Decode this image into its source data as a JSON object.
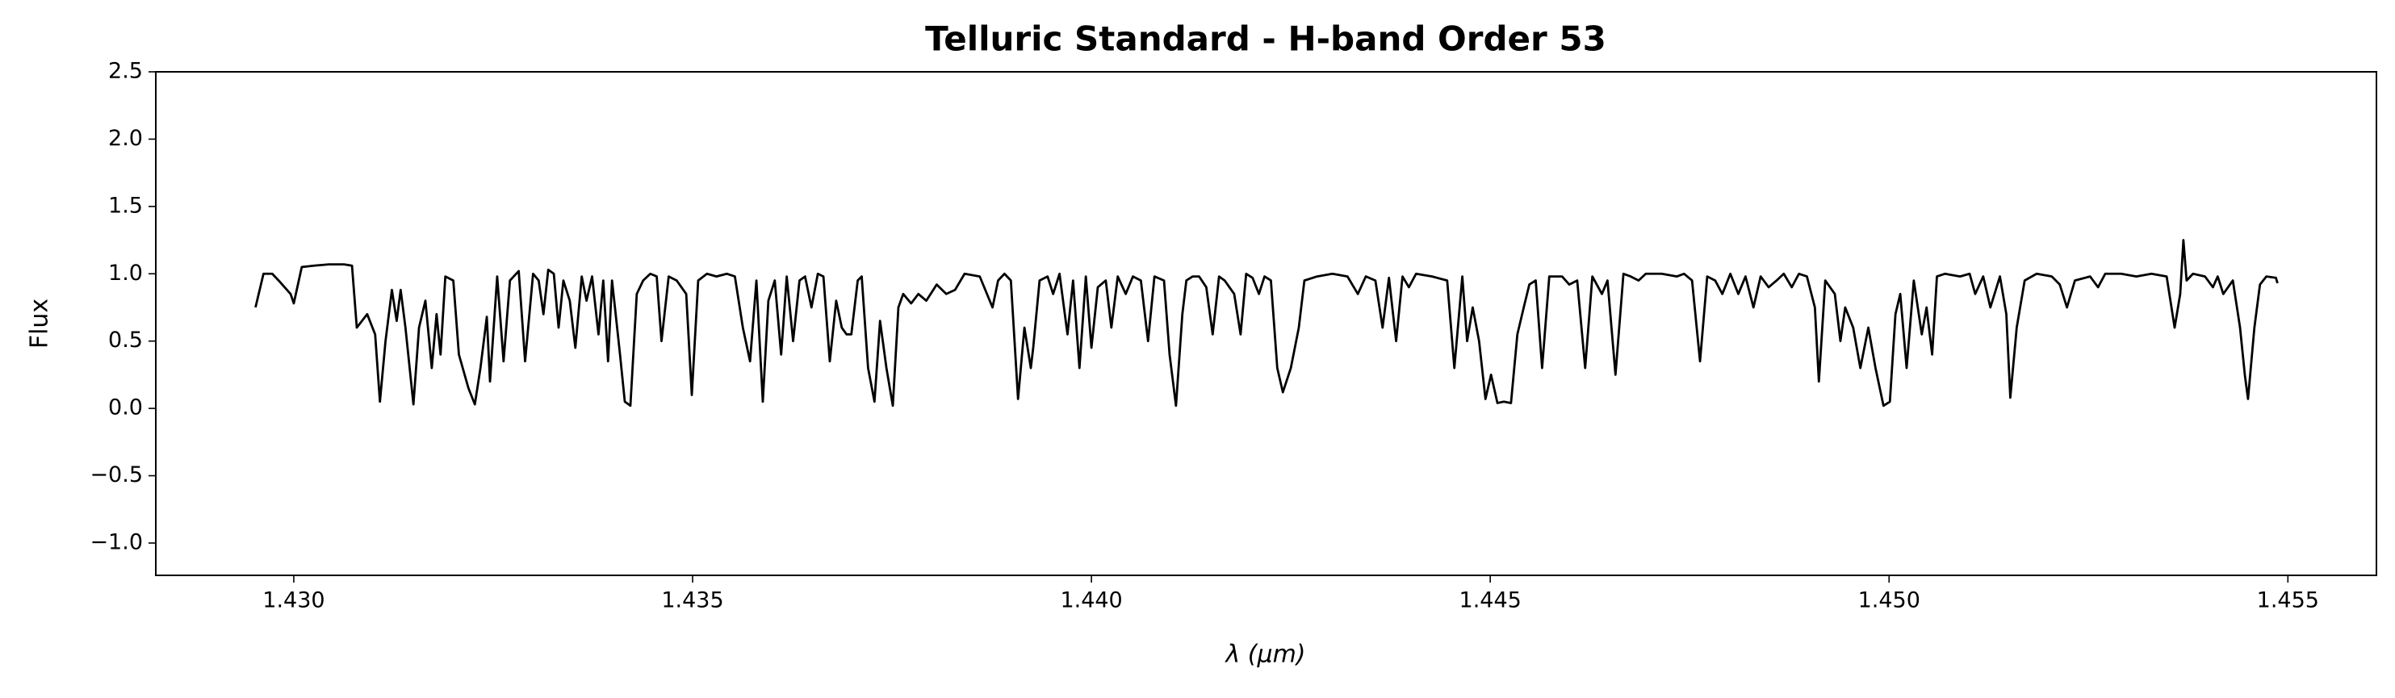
{
  "chart_data": {
    "type": "line",
    "title": "Telluric Standard - H-band Order 53",
    "xlabel": "λ (μm)",
    "ylabel": "Flux",
    "color": "#000000",
    "x": [
      1.42952,
      1.42962,
      1.42973,
      1.42981,
      1.42996,
      1.43,
      1.4301,
      1.43025,
      1.43044,
      1.43063,
      1.43073,
      1.43079,
      1.43092,
      1.43102,
      1.43108,
      1.43115,
      1.43123,
      1.43129,
      1.43134,
      1.4314,
      1.4315,
      1.43157,
      1.43165,
      1.43173,
      1.43179,
      1.43184,
      1.4319,
      1.432,
      1.43207,
      1.43219,
      1.43227,
      1.43234,
      1.43242,
      1.43246,
      1.43255,
      1.43263,
      1.43271,
      1.43282,
      1.4329,
      1.433,
      1.43307,
      1.43313,
      1.43319,
      1.43326,
      1.43332,
      1.43338,
      1.43346,
      1.43353,
      1.43361,
      1.43367,
      1.43374,
      1.43382,
      1.43388,
      1.43394,
      1.43399,
      1.43409,
      1.43415,
      1.43422,
      1.4343,
      1.43438,
      1.43447,
      1.43455,
      1.43461,
      1.4347,
      1.4348,
      1.43492,
      1.43499,
      1.43507,
      1.43518,
      1.4353,
      1.43543,
      1.43553,
      1.43563,
      1.43572,
      1.4358,
      1.43588,
      1.43595,
      1.43603,
      1.43611,
      1.43618,
      1.43626,
      1.43634,
      1.43641,
      1.43649,
      1.43657,
      1.43664,
      1.43672,
      1.4368,
      1.43687,
      1.43693,
      1.43699,
      1.43707,
      1.43712,
      1.4372,
      1.43728,
      1.43735,
      1.43743,
      1.43751,
      1.43758,
      1.43764,
      1.43774,
      1.43783,
      1.43793,
      1.43806,
      1.43818,
      1.43829,
      1.43841,
      1.4386,
      1.43876,
      1.43883,
      1.43891,
      1.43899,
      1.43908,
      1.43916,
      1.43924,
      1.43927,
      1.43935,
      1.43945,
      1.43952,
      1.4396,
      1.4397,
      1.43977,
      1.43985,
      1.43993,
      1.44,
      1.44008,
      1.44018,
      1.44025,
      1.44033,
      1.44043,
      1.44052,
      1.44062,
      1.44071,
      1.44079,
      1.44091,
      1.44098,
      1.44106,
      1.44114,
      1.44119,
      1.44127,
      1.44135,
      1.44144,
      1.44152,
      1.4416,
      1.44167,
      1.44179,
      1.44187,
      1.44194,
      1.44202,
      1.4421,
      1.44217,
      1.44225,
      1.44233,
      1.4424,
      1.4425,
      1.4426,
      1.44267,
      1.44283,
      1.44302,
      1.44321,
      1.44334,
      1.44344,
      1.44356,
      1.44365,
      1.44373,
      1.44382,
      1.4439,
      1.44398,
      1.44407,
      1.44427,
      1.44446,
      1.44455,
      1.44465,
      1.44471,
      1.44478,
      1.44486,
      1.44494,
      1.44501,
      1.44509,
      1.44517,
      1.44526,
      1.44534,
      1.44542,
      1.44549,
      1.44557,
      1.44565,
      1.44574,
      1.4459,
      1.44599,
      1.44609,
      1.44619,
      1.44628,
      1.4464,
      1.44647,
      1.44657,
      1.44667,
      1.44676,
      1.44686,
      1.44695,
      1.44715,
      1.44734,
      1.44743,
      1.44753,
      1.44763,
      1.44772,
      1.44782,
      1.44791,
      1.44801,
      1.44811,
      1.4482,
      1.4483,
      1.44839,
      1.44849,
      1.44859,
      1.44868,
      1.44878,
      1.44887,
      1.44897,
      1.44907,
      1.44912,
      1.4492,
      1.44932,
      1.44939,
      1.44945,
      1.44955,
      1.44964,
      1.44974,
      1.44983,
      1.44993,
      1.45001,
      1.45008,
      1.45014,
      1.45022,
      1.45031,
      1.45041,
      1.45047,
      1.45054,
      1.4506,
      1.4507,
      1.45089,
      1.45101,
      1.45108,
      1.45118,
      1.45127,
      1.45139,
      1.45147,
      1.45152,
      1.4516,
      1.4517,
      1.45185,
      1.45204,
      1.45214,
      1.45223,
      1.45233,
      1.45252,
      1.45262,
      1.45271,
      1.45291,
      1.4531,
      1.45329,
      1.45348,
      1.45358,
      1.45365,
      1.45369,
      1.45373,
      1.45381,
      1.45396,
      1.45406,
      1.45412,
      1.45419,
      1.45431,
      1.4544,
      1.45446,
      1.4545,
      1.45458,
      1.45465,
      1.45473,
      1.45485,
      1.45487
    ],
    "values": [
      0.75,
      1.0,
      1.0,
      0.95,
      0.85,
      0.78,
      1.05,
      1.06,
      1.07,
      1.07,
      1.06,
      0.6,
      0.7,
      0.55,
      0.05,
      0.5,
      0.88,
      0.65,
      0.88,
      0.6,
      0.03,
      0.6,
      0.8,
      0.3,
      0.7,
      0.4,
      0.98,
      0.95,
      0.4,
      0.15,
      0.03,
      0.3,
      0.68,
      0.2,
      0.98,
      0.35,
      0.95,
      1.02,
      0.35,
      1.0,
      0.95,
      0.7,
      1.03,
      1.0,
      0.6,
      0.95,
      0.8,
      0.45,
      0.98,
      0.8,
      0.98,
      0.55,
      0.95,
      0.35,
      0.95,
      0.4,
      0.05,
      0.02,
      0.85,
      0.95,
      1.0,
      0.98,
      0.5,
      0.98,
      0.95,
      0.85,
      0.1,
      0.95,
      1.0,
      0.98,
      1.0,
      0.98,
      0.6,
      0.35,
      0.95,
      0.05,
      0.8,
      0.95,
      0.4,
      0.98,
      0.5,
      0.95,
      0.98,
      0.75,
      1.0,
      0.98,
      0.35,
      0.8,
      0.6,
      0.55,
      0.55,
      0.95,
      0.98,
      0.3,
      0.05,
      0.65,
      0.3,
      0.02,
      0.75,
      0.85,
      0.78,
      0.85,
      0.8,
      0.92,
      0.85,
      0.88,
      1.0,
      0.98,
      0.75,
      0.95,
      1.0,
      0.95,
      0.07,
      0.6,
      0.3,
      0.45,
      0.95,
      0.98,
      0.85,
      1.0,
      0.55,
      0.95,
      0.3,
      0.98,
      0.45,
      0.9,
      0.95,
      0.6,
      0.98,
      0.85,
      0.98,
      0.95,
      0.5,
      0.98,
      0.95,
      0.4,
      0.02,
      0.7,
      0.95,
      0.98,
      0.98,
      0.9,
      0.55,
      0.98,
      0.95,
      0.85,
      0.55,
      1.0,
      0.97,
      0.85,
      0.98,
      0.95,
      0.3,
      0.12,
      0.3,
      0.6,
      0.95,
      0.98,
      1.0,
      0.98,
      0.85,
      0.98,
      0.95,
      0.6,
      0.97,
      0.5,
      0.98,
      0.9,
      1.0,
      0.98,
      0.95,
      0.3,
      0.98,
      0.5,
      0.75,
      0.5,
      0.07,
      0.25,
      0.04,
      0.05,
      0.04,
      0.55,
      0.75,
      0.92,
      0.95,
      0.3,
      0.98,
      0.98,
      0.92,
      0.95,
      0.3,
      0.98,
      0.85,
      0.95,
      0.25,
      1.0,
      0.98,
      0.95,
      1.0,
      1.0,
      0.98,
      1.0,
      0.95,
      0.35,
      0.98,
      0.95,
      0.85,
      1.0,
      0.85,
      0.98,
      0.75,
      0.98,
      0.9,
      0.95,
      1.0,
      0.9,
      1.0,
      0.98,
      0.75,
      0.2,
      0.95,
      0.85,
      0.5,
      0.75,
      0.6,
      0.3,
      0.6,
      0.3,
      0.02,
      0.05,
      0.7,
      0.85,
      0.3,
      0.95,
      0.55,
      0.75,
      0.4,
      0.98,
      1.0,
      0.98,
      1.0,
      0.85,
      0.98,
      0.75,
      0.98,
      0.7,
      0.08,
      0.6,
      0.95,
      1.0,
      0.98,
      0.92,
      0.75,
      0.95,
      0.98,
      0.9,
      1.0,
      1.0,
      0.98,
      1.0,
      0.98,
      0.6,
      0.85,
      1.25,
      0.95,
      1.0,
      0.98,
      0.9,
      0.98,
      0.85,
      0.95,
      0.6,
      0.25,
      0.07,
      0.6,
      0.92,
      0.98,
      0.97,
      0.93
    ],
    "xlim": [
      1.42827,
      1.45611
    ],
    "ylim": [
      -1.24,
      2.5
    ],
    "xticks": [
      {
        "value": 1.43,
        "label": "1.430"
      },
      {
        "value": 1.435,
        "label": "1.435"
      },
      {
        "value": 1.44,
        "label": "1.440"
      },
      {
        "value": 1.445,
        "label": "1.445"
      },
      {
        "value": 1.45,
        "label": "1.450"
      },
      {
        "value": 1.455,
        "label": "1.455"
      }
    ],
    "yticks": [
      {
        "value": -1,
        "label": "−1.0"
      },
      {
        "value": -0.5,
        "label": "−0.5"
      },
      {
        "value": 0,
        "label": "0.0"
      },
      0.5,
      {
        "value": 1,
        "label": "1.0"
      },
      1.5,
      {
        "value": 2,
        "label": "2.0"
      },
      2.5
    ]
  }
}
